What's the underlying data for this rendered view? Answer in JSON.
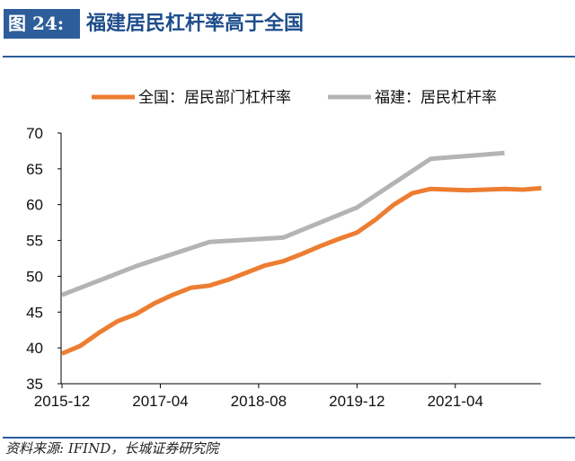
{
  "header": {
    "figure_label": "图 24:",
    "title": "福建居民杠杆率高于全国"
  },
  "footer": {
    "source": "资料来源: IFIND，长城证券研究院"
  },
  "colors": {
    "national": "#ed7d31",
    "fujian": "#b4b4b4",
    "brand": "#2d5d9a"
  },
  "chart_data": {
    "type": "line",
    "title": "福建居民杠杆率高于全国",
    "xlabel": "",
    "ylabel": "",
    "ylim": [
      35,
      70
    ],
    "yticks": [
      35,
      40,
      45,
      50,
      55,
      60,
      65,
      70
    ],
    "xticks": [
      "2015-12",
      "2017-04",
      "2018-08",
      "2019-12",
      "2021-04"
    ],
    "x_start": "2015-12",
    "legend_position": "top-center",
    "series": [
      {
        "name": "全国：居民部门杠杆率",
        "color": "#ed7d31",
        "frequency": "quarterly",
        "x": [
          "2015-12",
          "2016-03",
          "2016-06",
          "2016-09",
          "2016-12",
          "2017-03",
          "2017-06",
          "2017-09",
          "2017-12",
          "2018-03",
          "2018-06",
          "2018-09",
          "2018-12",
          "2019-03",
          "2019-06",
          "2019-09",
          "2019-12",
          "2020-03",
          "2020-06",
          "2020-09",
          "2020-12",
          "2021-03",
          "2021-06",
          "2021-09",
          "2021-12",
          "2022-03",
          "2022-06"
        ],
        "values": [
          39.2,
          40.3,
          42.1,
          43.7,
          44.7,
          46.2,
          47.4,
          48.4,
          48.7,
          49.5,
          50.5,
          51.5,
          52.1,
          53.1,
          54.2,
          55.2,
          56.1,
          57.9,
          60.0,
          61.6,
          62.2,
          62.1,
          62.0,
          62.1,
          62.2,
          62.1,
          62.3
        ]
      },
      {
        "name": "福建：居民杠杆率",
        "color": "#b4b4b4",
        "frequency": "annual",
        "x": [
          "2015-12",
          "2016-12",
          "2017-12",
          "2018-12",
          "2019-12",
          "2020-12",
          "2021-12"
        ],
        "values": [
          47.4,
          51.4,
          54.8,
          55.4,
          59.6,
          66.4,
          67.2
        ]
      }
    ]
  }
}
